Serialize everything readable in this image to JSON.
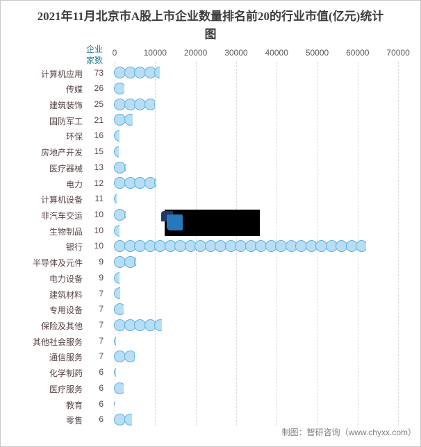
{
  "title": "2021年11月北京市A股上市企业数量排名前20的行业市值(亿元)统计图",
  "y_axis_header": "企业家数",
  "footer_credit": "制图：智研咨询（www.chyxx.com）",
  "colors": {
    "bubble_fill": "#b9def4",
    "bubble_border": "#58b1e4",
    "y_axis_header_teal": "#2b7b96",
    "category_label": "#5a4343",
    "axis_tick_label": "#595959",
    "gridline": "#d9d9d9",
    "title": "#3d3d3d",
    "footer": "#7f7f7f",
    "censor_box": "#000000",
    "censor_logo_navy": "#1f3864",
    "censor_logo_blue": "#2479bd"
  },
  "chart_data": {
    "type": "bar",
    "subtype": "horizontal-bubble-chain",
    "title": "2021年11月北京市A股上市企业数量排名前20的行业市值(亿元)统计图",
    "xlabel": "市值(亿元)",
    "ylabel": "企业家数",
    "xlim": [
      0,
      72000
    ],
    "x_ticks": [
      0,
      10000,
      20000,
      30000,
      40000,
      50000,
      60000,
      70000
    ],
    "grid": "vertical-dashed",
    "legend_position": "none",
    "categories": [
      "计算机应用",
      "传媒",
      "建筑装饰",
      "国防军工",
      "环保",
      "房地产开发",
      "医疗器械",
      "电力",
      "计算机设备",
      "非汽车交运",
      "生物制品",
      "银行",
      "半导体及元件",
      "电力设备",
      "建筑材料",
      "专用设备",
      "保险及其他",
      "其他社会服务",
      "通信服务",
      "化学制药",
      "医疗服务",
      "教育",
      "零售"
    ],
    "series": [
      {
        "name": "企业家数",
        "values": [
          73,
          26,
          25,
          21,
          16,
          15,
          13,
          12,
          11,
          10,
          10,
          10,
          9,
          9,
          7,
          7,
          7,
          7,
          7,
          6,
          6,
          6,
          6
        ]
      },
      {
        "name": "市值(亿元)",
        "note": "values estimated from bubble-chain extents against gridlines",
        "values": [
          11300,
          2600,
          10100,
          4600,
          1300,
          1200,
          3000,
          10400,
          750,
          3000,
          1300,
          62300,
          5500,
          1300,
          1600,
          2350,
          11900,
          460,
          5100,
          460,
          2450,
          120,
          4500
        ]
      }
    ]
  }
}
